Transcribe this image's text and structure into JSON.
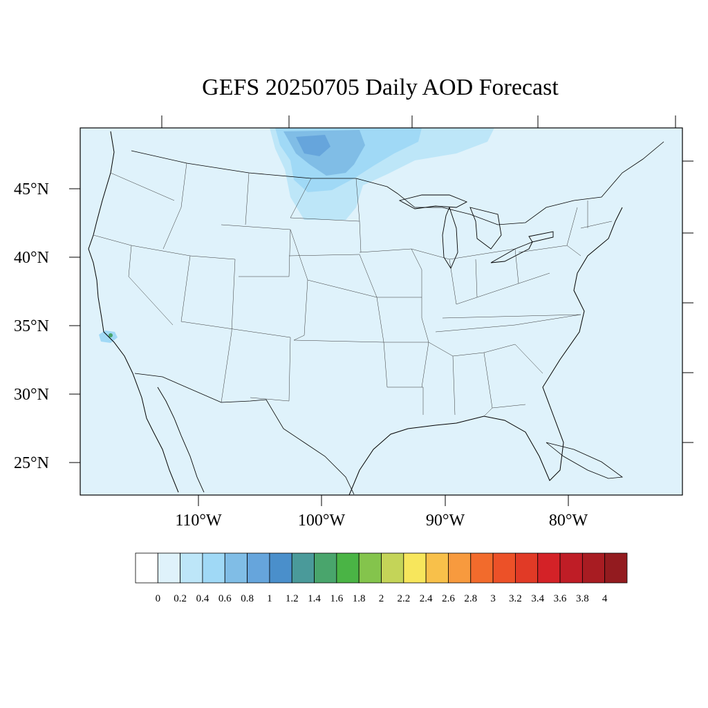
{
  "title": "GEFS 20250705 Daily AOD Forecast",
  "map": {
    "projection": "lambert-conformal",
    "background_color": "#dff2fb",
    "latitude_ticks": [
      {
        "value": 45,
        "label": "45°N"
      },
      {
        "value": 40,
        "label": "40°N"
      },
      {
        "value": 35,
        "label": "35°N"
      },
      {
        "value": 30,
        "label": "30°N"
      },
      {
        "value": 25,
        "label": "25°N"
      }
    ],
    "longitude_ticks": [
      {
        "value": -110,
        "label": "110°W"
      },
      {
        "value": -100,
        "label": "100°W"
      },
      {
        "value": -90,
        "label": "90°W"
      },
      {
        "value": -80,
        "label": "80°W"
      }
    ]
  },
  "colorbar": {
    "levels": [
      "0",
      "0.2",
      "0.4",
      "0.6",
      "0.8",
      "1",
      "1.2",
      "1.4",
      "1.6",
      "1.8",
      "2",
      "2.2",
      "2.4",
      "2.6",
      "2.8",
      "3",
      "3.2",
      "3.4",
      "3.6",
      "3.8",
      "4"
    ],
    "colors": [
      "#ffffff",
      "#dff2fb",
      "#bde6f8",
      "#a0d9f6",
      "#80bde6",
      "#66a5dc",
      "#4a8fcb",
      "#4a9a9a",
      "#49a56c",
      "#4ab445",
      "#84c44c",
      "#c4d458",
      "#f7e65c",
      "#f8c04a",
      "#f79a3e",
      "#f26b2c",
      "#ec5128",
      "#e13a26",
      "#d42227",
      "#bf1d26",
      "#a81c22",
      "#931b1f"
    ]
  }
}
